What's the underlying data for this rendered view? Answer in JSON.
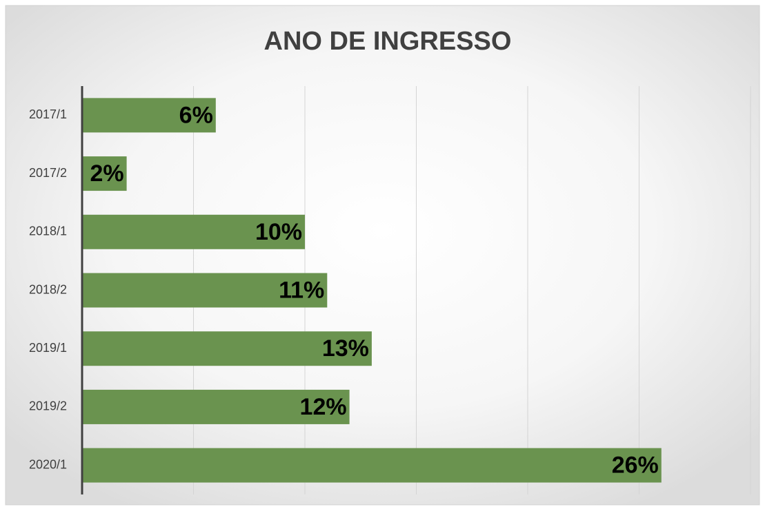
{
  "chart_data": {
    "type": "hbar",
    "title": "ANO DE INGRESSO",
    "categories": [
      "2017/1",
      "2017/2",
      "2018/1",
      "2018/2",
      "2019/1",
      "2019/2",
      "2020/1"
    ],
    "values": [
      6,
      2,
      10,
      11,
      13,
      12,
      26
    ],
    "value_labels": [
      "6%",
      "2%",
      "10%",
      "11%",
      "13%",
      "12%",
      "26%"
    ],
    "color": "#6a934f",
    "xlim": [
      0,
      30
    ],
    "xticks": [
      0,
      5,
      10,
      15,
      20,
      25,
      30
    ],
    "grid": true
  }
}
